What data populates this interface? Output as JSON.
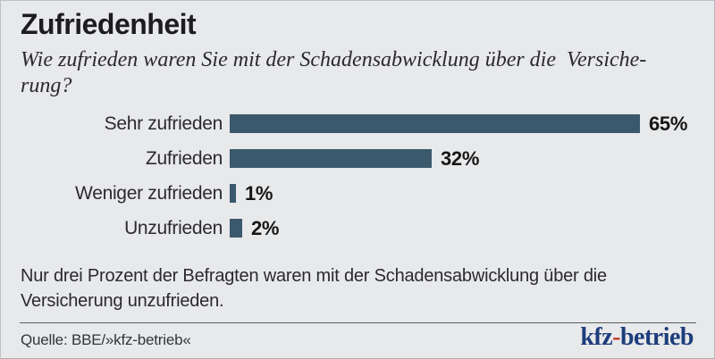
{
  "header": {
    "title": "Zufriedenheit",
    "subtitle_lines": [
      "Wie zufrieden waren Sie mit der Schadensabwicklung über die  Versiche-",
      "rung?"
    ]
  },
  "chart_data": {
    "type": "bar",
    "orientation": "horizontal",
    "categories": [
      "Sehr zufrieden",
      "Zufrieden",
      "Weniger zufrieden",
      "Unzufrieden"
    ],
    "values": [
      65,
      32,
      1,
      2
    ],
    "value_labels": [
      "65%",
      "32%",
      "1%",
      "2%"
    ],
    "title": "Zufriedenheit",
    "xlabel": "",
    "ylabel": "",
    "xlim": [
      0,
      100
    ],
    "grid": false,
    "legend": false,
    "bar_color": "#3b596d"
  },
  "note_lines": [
    "Nur drei Prozent der Befragten waren mit der Schadensabwicklung über die",
    "Versicherung unzufrieden."
  ],
  "footer": {
    "source": "Quelle: BBE/»kfz-betrieb«",
    "logo": {
      "part1": "kfz",
      "hyphen": "-",
      "part2": "betrieb",
      "color_main": "#1d3d7c",
      "color_hyphen": "#c23b2a"
    }
  },
  "colors": {
    "background": "#e8e9eb",
    "bar": "#3b596d",
    "text": "#1d1d1f"
  }
}
